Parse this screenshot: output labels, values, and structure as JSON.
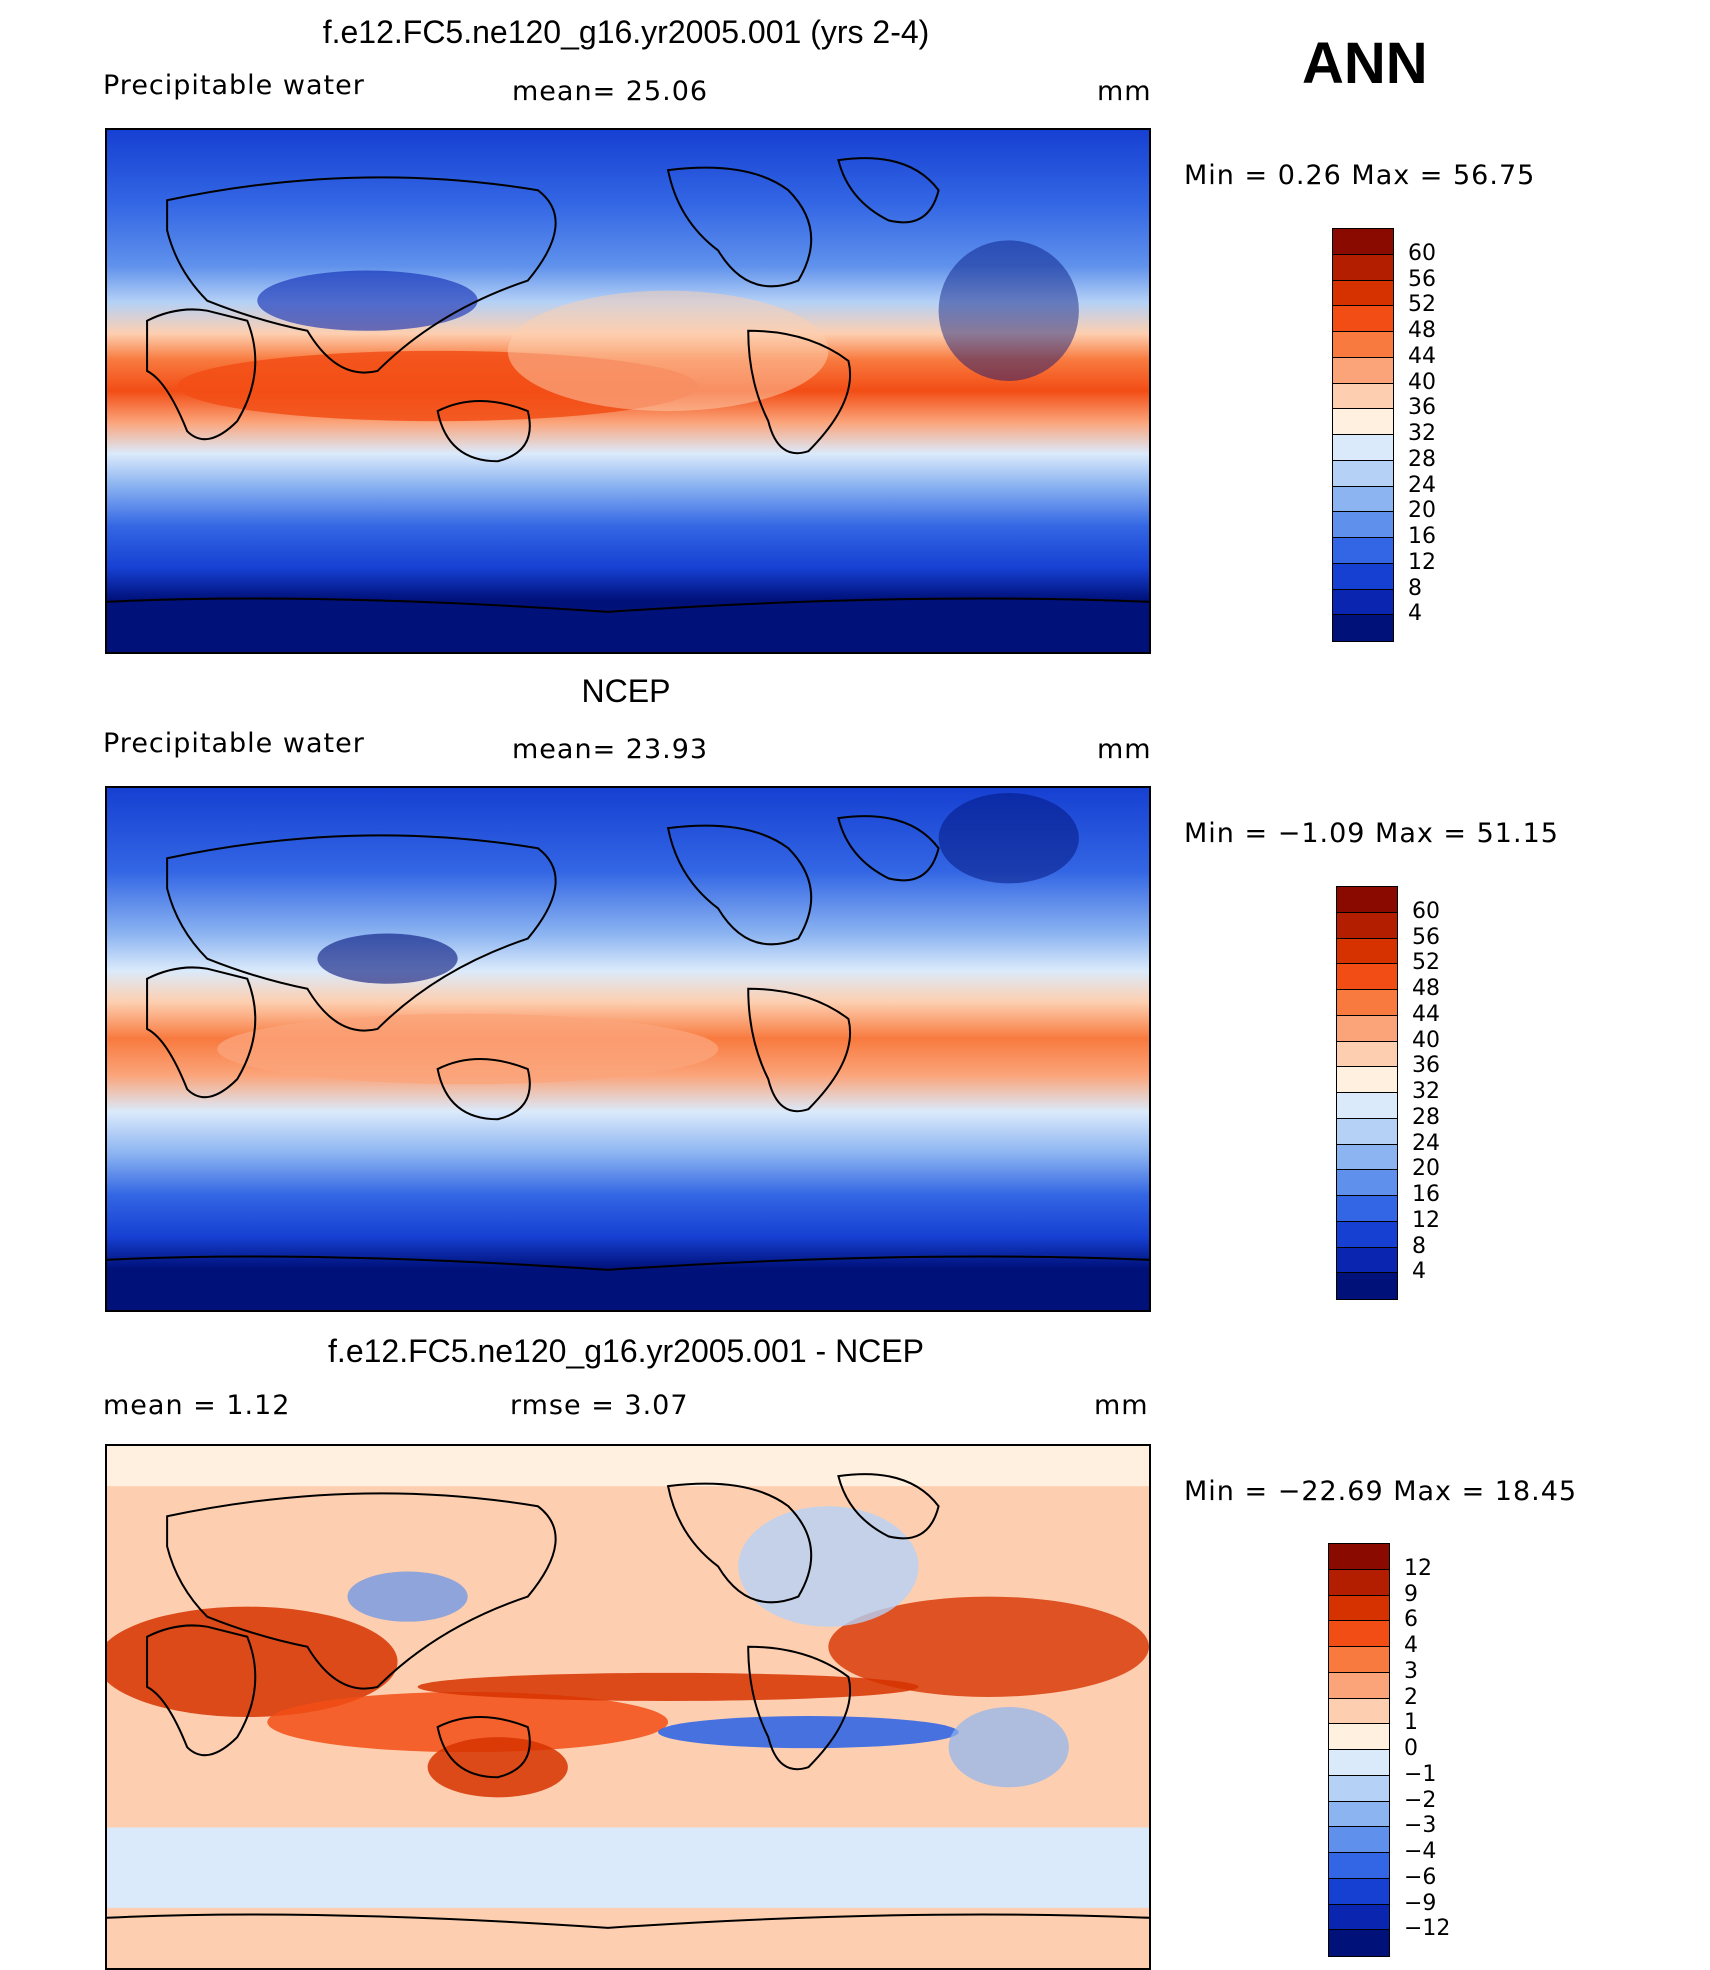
{
  "season": "ANN",
  "panels": [
    {
      "id": "model",
      "title": "f.e12.FC5.ne120_g16.yr2005.001 (yrs 2-4)",
      "left_label": "Precipitable  water",
      "center_label": "mean=   25.06",
      "units": "mm",
      "minmax": "Min  =    0.26  Max  =   56.75",
      "colorbar": {
        "labels": [
          "60",
          "56",
          "52",
          "48",
          "44",
          "40",
          "36",
          "32",
          "28",
          "24",
          "20",
          "16",
          "12",
          "8",
          "4"
        ],
        "colors": [
          "#8b0a00",
          "#b31e00",
          "#d63200",
          "#f24d15",
          "#f87a3f",
          "#fba47a",
          "#fdcfb0",
          "#fff0e0",
          "#dbeafb",
          "#b5d1f6",
          "#8cb4f1",
          "#5f91ec",
          "#3366e4",
          "#1640d2",
          "#0a26b0",
          "#00117a"
        ]
      }
    },
    {
      "id": "obs",
      "title": "NCEP",
      "left_label": "Precipitable  water",
      "center_label": "mean=   23.93",
      "units": "mm",
      "minmax": "Min  =   −1.09  Max  =   51.15",
      "colorbar": {
        "labels": [
          "60",
          "56",
          "52",
          "48",
          "44",
          "40",
          "36",
          "32",
          "28",
          "24",
          "20",
          "16",
          "12",
          "8",
          "4"
        ],
        "colors": [
          "#8b0a00",
          "#b31e00",
          "#d63200",
          "#f24d15",
          "#f87a3f",
          "#fba47a",
          "#fdcfb0",
          "#fff0e0",
          "#dbeafb",
          "#b5d1f6",
          "#8cb4f1",
          "#5f91ec",
          "#3366e4",
          "#1640d2",
          "#0a26b0",
          "#00117a"
        ]
      }
    },
    {
      "id": "diff",
      "title": "f.e12.FC5.ne120_g16.yr2005.001 - NCEP",
      "left_label": "mean  =     1.12",
      "center_label": "rmse  =     3.07",
      "units": "mm",
      "minmax": "Min  = −22.69  Max  =    18.45",
      "colorbar": {
        "labels": [
          "12",
          "9",
          "6",
          "4",
          "3",
          "2",
          "1",
          "0",
          "−1",
          "−2",
          "−3",
          "−4",
          "−6",
          "−9",
          "−12"
        ],
        "colors": [
          "#8b0a00",
          "#b31e00",
          "#d63200",
          "#f24d15",
          "#f87a3f",
          "#fba47a",
          "#fdcfb0",
          "#fff0e0",
          "#dbeafb",
          "#b5d1f6",
          "#8cb4f1",
          "#5f91ec",
          "#3366e4",
          "#1640d2",
          "#0a26b0",
          "#00117a"
        ]
      }
    }
  ],
  "chart_data": [
    {
      "type": "heatmap",
      "title": "f.e12.FC5.ne120_g16.yr2005.001 (yrs 2-4)",
      "variable": "Precipitable  water",
      "units": "mm",
      "mean": 25.06,
      "min": 0.26,
      "max": 56.75,
      "levels": [
        4,
        8,
        12,
        16,
        20,
        24,
        28,
        32,
        36,
        40,
        44,
        48,
        52,
        56,
        60
      ]
    },
    {
      "type": "heatmap",
      "title": "NCEP",
      "variable": "Precipitable  water",
      "units": "mm",
      "mean": 23.93,
      "min": -1.09,
      "max": 51.15,
      "levels": [
        4,
        8,
        12,
        16,
        20,
        24,
        28,
        32,
        36,
        40,
        44,
        48,
        52,
        56,
        60
      ]
    },
    {
      "type": "heatmap",
      "title": "f.e12.FC5.ne120_g16.yr2005.001 - NCEP",
      "units": "mm",
      "mean": 1.12,
      "rmse": 3.07,
      "min": -22.69,
      "max": 18.45,
      "levels": [
        -12,
        -9,
        -6,
        -4,
        -3,
        -2,
        -1,
        0,
        1,
        2,
        3,
        4,
        6,
        9,
        12
      ]
    }
  ]
}
